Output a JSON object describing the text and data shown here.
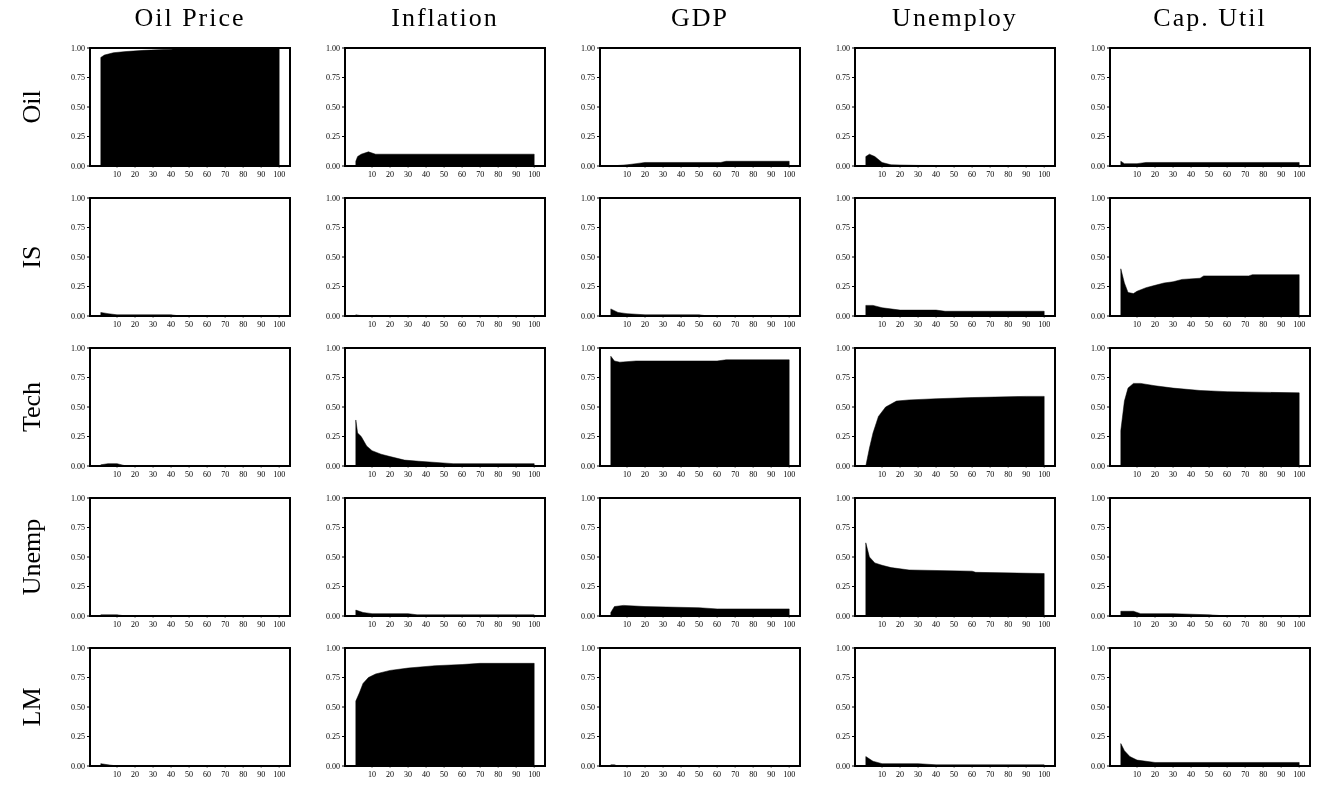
{
  "chart_data": [
    {
      "type": "area",
      "title": "Oil Price",
      "ylabel": "Oil",
      "color": "#000000",
      "x": [
        1,
        3,
        8,
        15,
        25,
        40,
        45,
        100
      ],
      "values": [
        0.92,
        0.94,
        0.96,
        0.97,
        0.98,
        0.99,
        1.0,
        1.0
      ],
      "xlim": [
        -5,
        106
      ],
      "ylim": [
        0,
        1
      ],
      "xticks": [
        10,
        20,
        30,
        40,
        50,
        60,
        70,
        80,
        90,
        100
      ],
      "yticks": [
        {
          "value": 0,
          "label": "0.00"
        },
        {
          "value": 0.25,
          "label": "0.25"
        },
        {
          "value": 0.5,
          "label": "0.50"
        },
        {
          "value": 0.75,
          "label": "0.75"
        },
        {
          "value": 1,
          "label": "1.00"
        }
      ]
    },
    {
      "type": "area",
      "title": "Inflation",
      "color": "#000000",
      "x": [
        1,
        2,
        4,
        8,
        12,
        100
      ],
      "values": [
        0.04,
        0.08,
        0.1,
        0.12,
        0.1,
        0.1
      ],
      "xlim": [
        -5,
        106
      ],
      "ylim": [
        0,
        1
      ],
      "xticks": [
        10,
        20,
        30,
        40,
        50,
        60,
        70,
        80,
        90,
        100
      ],
      "yticks": [
        {
          "value": 0,
          "label": "0.00"
        },
        {
          "value": 0.25,
          "label": "0.25"
        },
        {
          "value": 0.5,
          "label": "0.50"
        },
        {
          "value": 0.75,
          "label": "0.75"
        },
        {
          "value": 1,
          "label": "1.00"
        }
      ]
    },
    {
      "type": "area",
      "title": "GDP",
      "color": "#000000",
      "x": [
        1,
        10,
        15,
        20,
        62,
        65,
        100
      ],
      "values": [
        0,
        0.01,
        0.02,
        0.03,
        0.03,
        0.04,
        0.04
      ],
      "xlim": [
        -5,
        106
      ],
      "ylim": [
        0,
        1
      ],
      "xticks": [
        10,
        20,
        30,
        40,
        50,
        60,
        70,
        80,
        90,
        100
      ],
      "yticks": [
        {
          "value": 0,
          "label": "0.00"
        },
        {
          "value": 0.25,
          "label": "0.25"
        },
        {
          "value": 0.5,
          "label": "0.50"
        },
        {
          "value": 0.75,
          "label": "0.75"
        },
        {
          "value": 1,
          "label": "1.00"
        }
      ]
    },
    {
      "type": "area",
      "title": "Unemploy",
      "color": "#000000",
      "x": [
        1,
        3,
        6,
        10,
        15,
        30,
        100
      ],
      "values": [
        0.08,
        0.1,
        0.08,
        0.03,
        0.01,
        0.005,
        0
      ],
      "xlim": [
        -5,
        106
      ],
      "ylim": [
        0,
        1
      ],
      "xticks": [
        10,
        20,
        30,
        40,
        50,
        60,
        70,
        80,
        90,
        100
      ],
      "yticks": [
        {
          "value": 0,
          "label": "0.00"
        },
        {
          "value": 0.25,
          "label": "0.25"
        },
        {
          "value": 0.5,
          "label": "0.50"
        },
        {
          "value": 0.75,
          "label": "0.75"
        },
        {
          "value": 1,
          "label": "1.00"
        }
      ]
    },
    {
      "type": "area",
      "title": "Cap. Util",
      "color": "#000000",
      "x": [
        1,
        3,
        10,
        15,
        100
      ],
      "values": [
        0.04,
        0.02,
        0.02,
        0.03,
        0.03
      ],
      "xlim": [
        -5,
        106
      ],
      "ylim": [
        0,
        1
      ],
      "xticks": [
        10,
        20,
        30,
        40,
        50,
        60,
        70,
        80,
        90,
        100
      ],
      "yticks": [
        {
          "value": 0,
          "label": "0.00"
        },
        {
          "value": 0.25,
          "label": "0.25"
        },
        {
          "value": 0.5,
          "label": "0.50"
        },
        {
          "value": 0.75,
          "label": "0.75"
        },
        {
          "value": 1,
          "label": "1.00"
        }
      ]
    },
    {
      "type": "area",
      "ylabel": "IS",
      "color": "#000000",
      "x": [
        1,
        5,
        10,
        40,
        45,
        100
      ],
      "values": [
        0.03,
        0.02,
        0.01,
        0.01,
        0,
        0
      ],
      "xlim": [
        -5,
        106
      ],
      "ylim": [
        0,
        1
      ],
      "xticks": [
        10,
        20,
        30,
        40,
        50,
        60,
        70,
        80,
        90,
        100
      ],
      "yticks": [
        {
          "value": 0,
          "label": "0.00"
        },
        {
          "value": 0.25,
          "label": "0.25"
        },
        {
          "value": 0.5,
          "label": "0.50"
        },
        {
          "value": 0.75,
          "label": "0.75"
        },
        {
          "value": 1,
          "label": "1.00"
        }
      ]
    },
    {
      "type": "area",
      "color": "#000000",
      "x": [
        1,
        3,
        10,
        100
      ],
      "values": [
        0.01,
        0.005,
        0,
        0
      ],
      "xlim": [
        -5,
        106
      ],
      "ylim": [
        0,
        1
      ],
      "xticks": [
        10,
        20,
        30,
        40,
        50,
        60,
        70,
        80,
        90,
        100
      ],
      "yticks": [
        {
          "value": 0,
          "label": "0.00"
        },
        {
          "value": 0.25,
          "label": "0.25"
        },
        {
          "value": 0.5,
          "label": "0.50"
        },
        {
          "value": 0.75,
          "label": "0.75"
        },
        {
          "value": 1,
          "label": "1.00"
        }
      ]
    },
    {
      "type": "area",
      "color": "#000000",
      "x": [
        1,
        5,
        10,
        20,
        50,
        55,
        100
      ],
      "values": [
        0.06,
        0.03,
        0.02,
        0.01,
        0.01,
        0,
        0
      ],
      "xlim": [
        -5,
        106
      ],
      "ylim": [
        0,
        1
      ],
      "xticks": [
        10,
        20,
        30,
        40,
        50,
        60,
        70,
        80,
        90,
        100
      ],
      "yticks": [
        {
          "value": 0,
          "label": "0.00"
        },
        {
          "value": 0.25,
          "label": "0.25"
        },
        {
          "value": 0.5,
          "label": "0.50"
        },
        {
          "value": 0.75,
          "label": "0.75"
        },
        {
          "value": 1,
          "label": "1.00"
        }
      ]
    },
    {
      "type": "area",
      "color": "#000000",
      "x": [
        1,
        5,
        10,
        20,
        40,
        45,
        100
      ],
      "values": [
        0.09,
        0.09,
        0.07,
        0.05,
        0.05,
        0.04,
        0.04
      ],
      "xlim": [
        -5,
        106
      ],
      "ylim": [
        0,
        1
      ],
      "xticks": [
        10,
        20,
        30,
        40,
        50,
        60,
        70,
        80,
        90,
        100
      ],
      "yticks": [
        {
          "value": 0,
          "label": "0.00"
        },
        {
          "value": 0.25,
          "label": "0.25"
        },
        {
          "value": 0.5,
          "label": "0.50"
        },
        {
          "value": 0.75,
          "label": "0.75"
        },
        {
          "value": 1,
          "label": "1.00"
        }
      ]
    },
    {
      "type": "area",
      "color": "#000000",
      "x": [
        1,
        3,
        5,
        8,
        10,
        15,
        20,
        25,
        30,
        35,
        45,
        47,
        72,
        74,
        100
      ],
      "values": [
        0.4,
        0.28,
        0.2,
        0.19,
        0.21,
        0.24,
        0.26,
        0.28,
        0.29,
        0.31,
        0.32,
        0.34,
        0.34,
        0.35,
        0.35
      ],
      "xlim": [
        -5,
        106
      ],
      "ylim": [
        0,
        1
      ],
      "xticks": [
        10,
        20,
        30,
        40,
        50,
        60,
        70,
        80,
        90,
        100
      ],
      "yticks": [
        {
          "value": 0,
          "label": "0.00"
        },
        {
          "value": 0.25,
          "label": "0.25"
        },
        {
          "value": 0.5,
          "label": "0.50"
        },
        {
          "value": 0.75,
          "label": "0.75"
        },
        {
          "value": 1,
          "label": "1.00"
        }
      ]
    },
    {
      "type": "area",
      "ylabel": "Tech",
      "color": "#000000",
      "x": [
        1,
        5,
        10,
        15,
        100
      ],
      "values": [
        0.01,
        0.02,
        0.02,
        0,
        0
      ],
      "xlim": [
        -5,
        106
      ],
      "ylim": [
        0,
        1
      ],
      "xticks": [
        10,
        20,
        30,
        40,
        50,
        60,
        70,
        80,
        90,
        100
      ],
      "yticks": [
        {
          "value": 0,
          "label": "0.00"
        },
        {
          "value": 0.25,
          "label": "0.25"
        },
        {
          "value": 0.5,
          "label": "0.50"
        },
        {
          "value": 0.75,
          "label": "0.75"
        },
        {
          "value": 1,
          "label": "1.00"
        }
      ]
    },
    {
      "type": "area",
      "color": "#000000",
      "x": [
        1,
        2,
        4,
        7,
        10,
        15,
        20,
        28,
        36,
        55,
        100
      ],
      "values": [
        0.39,
        0.28,
        0.25,
        0.17,
        0.13,
        0.1,
        0.08,
        0.05,
        0.04,
        0.02,
        0.02
      ],
      "xlim": [
        -5,
        106
      ],
      "ylim": [
        0,
        1
      ],
      "xticks": [
        10,
        20,
        30,
        40,
        50,
        60,
        70,
        80,
        90,
        100
      ],
      "yticks": [
        {
          "value": 0,
          "label": "0.00"
        },
        {
          "value": 0.25,
          "label": "0.25"
        },
        {
          "value": 0.5,
          "label": "0.50"
        },
        {
          "value": 0.75,
          "label": "0.75"
        },
        {
          "value": 1,
          "label": "1.00"
        }
      ]
    },
    {
      "type": "area",
      "color": "#000000",
      "x": [
        1,
        3,
        6,
        15,
        60,
        65,
        100
      ],
      "values": [
        0.93,
        0.89,
        0.88,
        0.89,
        0.89,
        0.9,
        0.9
      ],
      "xlim": [
        -5,
        106
      ],
      "ylim": [
        0,
        1
      ],
      "xticks": [
        10,
        20,
        30,
        40,
        50,
        60,
        70,
        80,
        90,
        100
      ],
      "yticks": [
        {
          "value": 0,
          "label": "0.00"
        },
        {
          "value": 0.25,
          "label": "0.25"
        },
        {
          "value": 0.5,
          "label": "0.50"
        },
        {
          "value": 0.75,
          "label": "0.75"
        },
        {
          "value": 1,
          "label": "1.00"
        }
      ]
    },
    {
      "type": "area",
      "color": "#000000",
      "x": [
        1,
        3,
        5,
        8,
        12,
        18,
        25,
        40,
        60,
        90,
        100
      ],
      "values": [
        0,
        0.15,
        0.28,
        0.42,
        0.5,
        0.55,
        0.56,
        0.57,
        0.58,
        0.59,
        0.59
      ],
      "xlim": [
        -5,
        106
      ],
      "ylim": [
        0,
        1
      ],
      "xticks": [
        10,
        20,
        30,
        40,
        50,
        60,
        70,
        80,
        90,
        100
      ],
      "yticks": [
        {
          "value": 0,
          "label": "0.00"
        },
        {
          "value": 0.25,
          "label": "0.25"
        },
        {
          "value": 0.5,
          "label": "0.50"
        },
        {
          "value": 0.75,
          "label": "0.75"
        },
        {
          "value": 1,
          "label": "1.00"
        }
      ]
    },
    {
      "type": "area",
      "color": "#000000",
      "x": [
        1,
        3,
        5,
        8,
        12,
        20,
        30,
        45,
        60,
        100
      ],
      "values": [
        0.3,
        0.55,
        0.66,
        0.7,
        0.7,
        0.68,
        0.66,
        0.64,
        0.63,
        0.62
      ],
      "xlim": [
        -5,
        106
      ],
      "ylim": [
        0,
        1
      ],
      "xticks": [
        10,
        20,
        30,
        40,
        50,
        60,
        70,
        80,
        90,
        100
      ],
      "yticks": [
        {
          "value": 0,
          "label": "0.00"
        },
        {
          "value": 0.25,
          "label": "0.25"
        },
        {
          "value": 0.5,
          "label": "0.50"
        },
        {
          "value": 0.75,
          "label": "0.75"
        },
        {
          "value": 1,
          "label": "1.00"
        }
      ]
    },
    {
      "type": "area",
      "ylabel": "Unemp",
      "color": "#000000",
      "x": [
        1,
        10,
        15,
        100
      ],
      "values": [
        0.01,
        0.01,
        0,
        0
      ],
      "xlim": [
        -5,
        106
      ],
      "ylim": [
        0,
        1
      ],
      "xticks": [
        10,
        20,
        30,
        40,
        50,
        60,
        70,
        80,
        90,
        100
      ],
      "yticks": [
        {
          "value": 0,
          "label": "0.00"
        },
        {
          "value": 0.25,
          "label": "0.25"
        },
        {
          "value": 0.5,
          "label": "0.50"
        },
        {
          "value": 0.75,
          "label": "0.75"
        },
        {
          "value": 1,
          "label": "1.00"
        }
      ]
    },
    {
      "type": "area",
      "color": "#000000",
      "x": [
        1,
        5,
        10,
        30,
        35,
        100
      ],
      "values": [
        0.05,
        0.03,
        0.02,
        0.02,
        0.01,
        0.01
      ],
      "xlim": [
        -5,
        106
      ],
      "ylim": [
        0,
        1
      ],
      "xticks": [
        10,
        20,
        30,
        40,
        50,
        60,
        70,
        80,
        90,
        100
      ],
      "yticks": [
        {
          "value": 0,
          "label": "0.00"
        },
        {
          "value": 0.25,
          "label": "0.25"
        },
        {
          "value": 0.5,
          "label": "0.50"
        },
        {
          "value": 0.75,
          "label": "0.75"
        },
        {
          "value": 1,
          "label": "1.00"
        }
      ]
    },
    {
      "type": "area",
      "color": "#000000",
      "x": [
        1,
        3,
        8,
        20,
        50,
        60,
        100
      ],
      "values": [
        0.03,
        0.08,
        0.09,
        0.08,
        0.07,
        0.06,
        0.06
      ],
      "xlim": [
        -5,
        106
      ],
      "ylim": [
        0,
        1
      ],
      "xticks": [
        10,
        20,
        30,
        40,
        50,
        60,
        70,
        80,
        90,
        100
      ],
      "yticks": [
        {
          "value": 0,
          "label": "0.00"
        },
        {
          "value": 0.25,
          "label": "0.25"
        },
        {
          "value": 0.5,
          "label": "0.50"
        },
        {
          "value": 0.75,
          "label": "0.75"
        },
        {
          "value": 1,
          "label": "1.00"
        }
      ]
    },
    {
      "type": "area",
      "color": "#000000",
      "x": [
        1,
        3,
        6,
        10,
        15,
        25,
        60,
        62,
        100
      ],
      "values": [
        0.62,
        0.5,
        0.45,
        0.43,
        0.41,
        0.39,
        0.38,
        0.37,
        0.36
      ],
      "xlim": [
        -5,
        106
      ],
      "ylim": [
        0,
        1
      ],
      "xticks": [
        10,
        20,
        30,
        40,
        50,
        60,
        70,
        80,
        90,
        100
      ],
      "yticks": [
        {
          "value": 0,
          "label": "0.00"
        },
        {
          "value": 0.25,
          "label": "0.25"
        },
        {
          "value": 0.5,
          "label": "0.50"
        },
        {
          "value": 0.75,
          "label": "0.75"
        },
        {
          "value": 1,
          "label": "1.00"
        }
      ]
    },
    {
      "type": "area",
      "color": "#000000",
      "x": [
        1,
        8,
        12,
        30,
        50,
        60,
        100
      ],
      "values": [
        0.04,
        0.04,
        0.02,
        0.02,
        0.01,
        0,
        0
      ],
      "xlim": [
        -5,
        106
      ],
      "ylim": [
        0,
        1
      ],
      "xticks": [
        10,
        20,
        30,
        40,
        50,
        60,
        70,
        80,
        90,
        100
      ],
      "yticks": [
        {
          "value": 0,
          "label": "0.00"
        },
        {
          "value": 0.25,
          "label": "0.25"
        },
        {
          "value": 0.5,
          "label": "0.50"
        },
        {
          "value": 0.75,
          "label": "0.75"
        },
        {
          "value": 1,
          "label": "1.00"
        }
      ]
    },
    {
      "type": "area",
      "ylabel": "LM",
      "color": "#000000",
      "x": [
        1,
        5,
        10,
        100
      ],
      "values": [
        0.02,
        0.01,
        0,
        0
      ],
      "xlim": [
        -5,
        106
      ],
      "ylim": [
        0,
        1
      ],
      "xticks": [
        10,
        20,
        30,
        40,
        50,
        60,
        70,
        80,
        90,
        100
      ],
      "yticks": [
        {
          "value": 0,
          "label": "0.00"
        },
        {
          "value": 0.25,
          "label": "0.25"
        },
        {
          "value": 0.5,
          "label": "0.50"
        },
        {
          "value": 0.75,
          "label": "0.75"
        },
        {
          "value": 1,
          "label": "1.00"
        }
      ]
    },
    {
      "type": "area",
      "color": "#000000",
      "x": [
        1,
        3,
        5,
        8,
        12,
        20,
        30,
        45,
        60,
        70,
        100
      ],
      "values": [
        0.55,
        0.62,
        0.7,
        0.75,
        0.78,
        0.81,
        0.83,
        0.85,
        0.86,
        0.87,
        0.87
      ],
      "xlim": [
        -5,
        106
      ],
      "ylim": [
        0,
        1
      ],
      "xticks": [
        10,
        20,
        30,
        40,
        50,
        60,
        70,
        80,
        90,
        100
      ],
      "yticks": [
        {
          "value": 0,
          "label": "0.00"
        },
        {
          "value": 0.25,
          "label": "0.25"
        },
        {
          "value": 0.5,
          "label": "0.50"
        },
        {
          "value": 0.75,
          "label": "0.75"
        },
        {
          "value": 1,
          "label": "1.00"
        }
      ]
    },
    {
      "type": "area",
      "color": "#000000",
      "x": [
        1,
        3,
        5,
        100
      ],
      "values": [
        0.01,
        0.01,
        0,
        0
      ],
      "xlim": [
        -5,
        106
      ],
      "ylim": [
        0,
        1
      ],
      "xticks": [
        10,
        20,
        30,
        40,
        50,
        60,
        70,
        80,
        90,
        100
      ],
      "yticks": [
        {
          "value": 0,
          "label": "0.00"
        },
        {
          "value": 0.25,
          "label": "0.25"
        },
        {
          "value": 0.5,
          "label": "0.50"
        },
        {
          "value": 0.75,
          "label": "0.75"
        },
        {
          "value": 1,
          "label": "1.00"
        }
      ]
    },
    {
      "type": "area",
      "color": "#000000",
      "x": [
        1,
        5,
        10,
        30,
        40,
        100
      ],
      "values": [
        0.08,
        0.04,
        0.02,
        0.02,
        0.01,
        0.01
      ],
      "xlim": [
        -5,
        106
      ],
      "ylim": [
        0,
        1
      ],
      "xticks": [
        10,
        20,
        30,
        40,
        50,
        60,
        70,
        80,
        90,
        100
      ],
      "yticks": [
        {
          "value": 0,
          "label": "0.00"
        },
        {
          "value": 0.25,
          "label": "0.25"
        },
        {
          "value": 0.5,
          "label": "0.50"
        },
        {
          "value": 0.75,
          "label": "0.75"
        },
        {
          "value": 1,
          "label": "1.00"
        }
      ]
    },
    {
      "type": "area",
      "color": "#000000",
      "x": [
        1,
        3,
        6,
        10,
        20,
        100
      ],
      "values": [
        0.19,
        0.13,
        0.08,
        0.05,
        0.03,
        0.03
      ],
      "xlim": [
        -5,
        106
      ],
      "ylim": [
        0,
        1
      ],
      "xticks": [
        10,
        20,
        30,
        40,
        50,
        60,
        70,
        80,
        90,
        100
      ],
      "yticks": [
        {
          "value": 0,
          "label": "0.00"
        },
        {
          "value": 0.25,
          "label": "0.25"
        },
        {
          "value": 0.5,
          "label": "0.50"
        },
        {
          "value": 0.75,
          "label": "0.75"
        },
        {
          "value": 1,
          "label": "1.00"
        }
      ]
    }
  ]
}
